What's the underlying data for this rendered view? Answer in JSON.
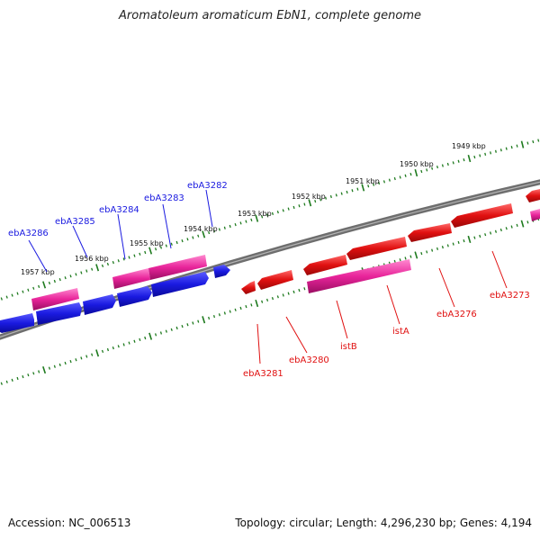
{
  "header": {
    "title": "Aromatoleum aromaticum EbN1, complete genome"
  },
  "footer": {
    "accession": "Accession: NC_006513",
    "summary": "Topology: circular; Length: 4,296,230 bp; Genes: 4,194"
  },
  "scale": {
    "unit_labels": [
      "1949 kbp",
      "1950 kbp",
      "1951 kbp",
      "1952 kbp",
      "1953 kbp",
      "1954 kbp",
      "1955 kbp",
      "1956 kbp",
      "1957 kbp"
    ]
  },
  "genes": [
    {
      "name": "ebA3286",
      "strand": "minus",
      "color": "#1a1ae0"
    },
    {
      "name": "ebA3285",
      "strand": "minus",
      "color": "#1a1ae0"
    },
    {
      "name": "ebA3284",
      "strand": "minus",
      "color": "#1a1ae0"
    },
    {
      "name": "ebA3283",
      "strand": "minus",
      "color": "#1a1ae0"
    },
    {
      "name": "ebA3282",
      "strand": "minus",
      "color": "#1a1ae0"
    },
    {
      "name": "ebA3281",
      "strand": "plus",
      "color": "#e01010"
    },
    {
      "name": "ebA3280",
      "strand": "plus",
      "color": "#e01010"
    },
    {
      "name": "istB",
      "strand": "plus",
      "color": "#e01010"
    },
    {
      "name": "istA",
      "strand": "plus",
      "color": "#e01010"
    },
    {
      "name": "ebA3276",
      "strand": "plus",
      "color": "#e01010"
    },
    {
      "name": "ebA3273",
      "strand": "plus",
      "color": "#e01010"
    }
  ],
  "colors": {
    "backbone": "#777777",
    "scale_ticks": "#1e7a1e",
    "minus_strand_genes": "#1a1ae0",
    "plus_strand_genes": "#e01010",
    "pseudo_or_transposase": "#e8249a"
  }
}
